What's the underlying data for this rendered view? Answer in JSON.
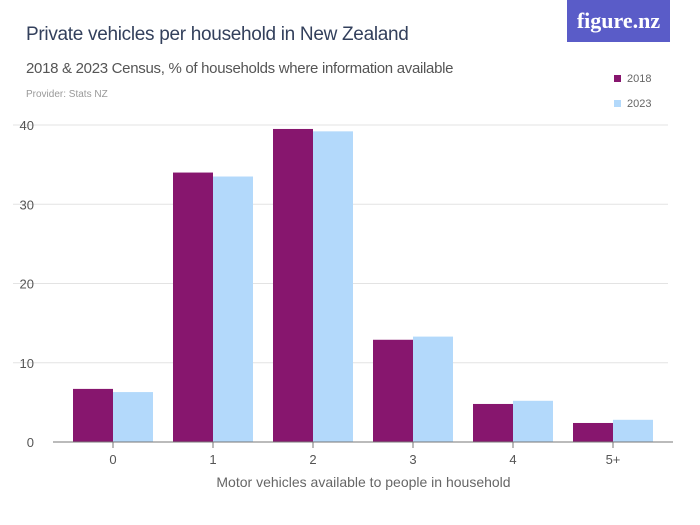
{
  "header": {
    "title": "Private vehicles per household in New Zealand",
    "subtitle": "2018 & 2023 Census, % of households where information available",
    "provider": "Provider: Stats NZ",
    "logo": "figure.nz"
  },
  "chart_data": {
    "type": "bar",
    "title": "Private vehicles per household in New Zealand",
    "subtitle": "2018 & 2023 Census, % of households where information available",
    "xlabel": "Motor vehicles available to people in household",
    "ylabel": "",
    "categories": [
      "0",
      "1",
      "2",
      "3",
      "4",
      "5+"
    ],
    "series": [
      {
        "name": "2018",
        "color": "#87166e",
        "values": [
          6.7,
          34.0,
          39.5,
          12.9,
          4.8,
          2.4
        ]
      },
      {
        "name": "2023",
        "color": "#b3d9fb",
        "values": [
          6.3,
          33.5,
          39.2,
          13.3,
          5.2,
          2.8
        ]
      }
    ],
    "ylim": [
      0,
      40
    ],
    "yticks": [
      0,
      10,
      20,
      30,
      40
    ],
    "grid": true,
    "legend": "top-right"
  }
}
